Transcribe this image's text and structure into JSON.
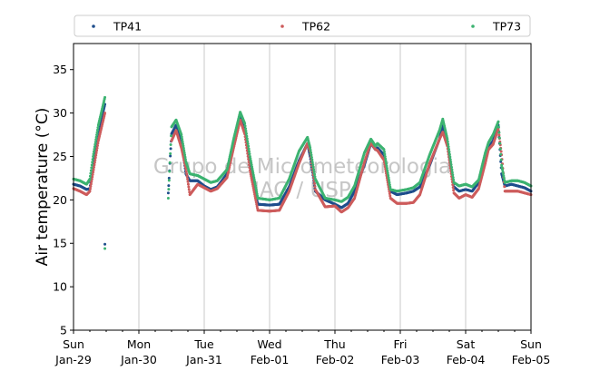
{
  "chart_data": {
    "type": "scatter",
    "ylabel": "Air temperature (°C)",
    "xlabel": "",
    "ylim": [
      5,
      38
    ],
    "yticks": [
      5,
      10,
      15,
      20,
      25,
      30,
      35
    ],
    "xlim_days": [
      0,
      7
    ],
    "xticks": [
      {
        "day": 0,
        "dow": "Sun",
        "date": "Jan-29"
      },
      {
        "day": 1,
        "dow": "Mon",
        "date": "Jan-30"
      },
      {
        "day": 2,
        "dow": "Tue",
        "date": "Jan-31"
      },
      {
        "day": 3,
        "dow": "Wed",
        "date": "Feb-01"
      },
      {
        "day": 4,
        "dow": "Thu",
        "date": "Feb-02"
      },
      {
        "day": 5,
        "dow": "Fri",
        "date": "Feb-03"
      },
      {
        "day": 6,
        "dow": "Sat",
        "date": "Feb-04"
      },
      {
        "day": 7,
        "dow": "Sun",
        "date": "Feb-05"
      }
    ],
    "grid": "vertical",
    "legend_position": "top",
    "watermark": [
      "Grupo de Micrometeorologia",
      "IAG / USP"
    ],
    "series": [
      {
        "name": "TP41",
        "color": "#1f4e8c",
        "points": [
          [
            0,
            21.8
          ],
          [
            0.1,
            21.6
          ],
          [
            0.2,
            21.2
          ],
          [
            0.25,
            21.3
          ],
          [
            0.3,
            24
          ],
          [
            0.38,
            27.8
          ],
          [
            0.48,
            31
          ],
          [
            0.48,
            14.9
          ],
          [
            1.45,
            20.8
          ],
          [
            1.5,
            27.6
          ],
          [
            1.57,
            28.6
          ],
          [
            1.65,
            26.8
          ],
          [
            1.72,
            23
          ],
          [
            1.78,
            22.2
          ],
          [
            1.9,
            22.2
          ],
          [
            2,
            21.6
          ],
          [
            2.1,
            21.2
          ],
          [
            2.2,
            21.5
          ],
          [
            2.35,
            23
          ],
          [
            2.45,
            26.5
          ],
          [
            2.55,
            29.6
          ],
          [
            2.62,
            28.2
          ],
          [
            2.7,
            24
          ],
          [
            2.82,
            19.5
          ],
          [
            3,
            19.4
          ],
          [
            3.15,
            19.5
          ],
          [
            3.3,
            21.5
          ],
          [
            3.45,
            24.5
          ],
          [
            3.58,
            26.5
          ],
          [
            3.62,
            25
          ],
          [
            3.7,
            21
          ],
          [
            3.85,
            20
          ],
          [
            4,
            19.5
          ],
          [
            4.1,
            19.1
          ],
          [
            4.2,
            19.6
          ],
          [
            4.3,
            21
          ],
          [
            4.45,
            24
          ],
          [
            4.55,
            26.5
          ],
          [
            4.62,
            25.8
          ],
          [
            4.65,
            26
          ],
          [
            4.75,
            25.2
          ],
          [
            4.85,
            21
          ],
          [
            4.95,
            20.6
          ],
          [
            5.1,
            20.8
          ],
          [
            5.2,
            21
          ],
          [
            5.3,
            21.5
          ],
          [
            5.45,
            24
          ],
          [
            5.6,
            27
          ],
          [
            5.65,
            28.6
          ],
          [
            5.72,
            26.5
          ],
          [
            5.82,
            21.5
          ],
          [
            5.9,
            21
          ],
          [
            6,
            21.2
          ],
          [
            6.1,
            21
          ],
          [
            6.2,
            22
          ],
          [
            6.3,
            24.5
          ],
          [
            6.35,
            26
          ],
          [
            6.42,
            26.8
          ],
          [
            6.5,
            28.6
          ],
          [
            6.55,
            23
          ],
          [
            6.6,
            21.6
          ],
          [
            6.7,
            21.8
          ],
          [
            6.8,
            21.6
          ],
          [
            6.9,
            21.4
          ],
          [
            7,
            21
          ]
        ]
      },
      {
        "name": "TP62",
        "color": "#cd5c5c",
        "points": [
          [
            0,
            21.3
          ],
          [
            0.1,
            21
          ],
          [
            0.2,
            20.6
          ],
          [
            0.25,
            21
          ],
          [
            0.3,
            23.2
          ],
          [
            0.38,
            26.8
          ],
          [
            0.48,
            30
          ],
          [
            1.5,
            26.8
          ],
          [
            1.57,
            28
          ],
          [
            1.65,
            26
          ],
          [
            1.72,
            23.6
          ],
          [
            1.78,
            20.6
          ],
          [
            1.9,
            21.8
          ],
          [
            2,
            21.4
          ],
          [
            2.1,
            21
          ],
          [
            2.2,
            21.3
          ],
          [
            2.35,
            22.6
          ],
          [
            2.45,
            26
          ],
          [
            2.55,
            29.2
          ],
          [
            2.62,
            27.6
          ],
          [
            2.7,
            23.4
          ],
          [
            2.82,
            18.8
          ],
          [
            3,
            18.7
          ],
          [
            3.15,
            18.8
          ],
          [
            3.3,
            21
          ],
          [
            3.45,
            24.2
          ],
          [
            3.58,
            26.5
          ],
          [
            3.62,
            25.6
          ],
          [
            3.7,
            21.2
          ],
          [
            3.85,
            19.2
          ],
          [
            4,
            19.3
          ],
          [
            4.1,
            18.6
          ],
          [
            4.2,
            19.1
          ],
          [
            4.3,
            20.2
          ],
          [
            4.45,
            24.3
          ],
          [
            4.55,
            26.6
          ],
          [
            4.62,
            25.8
          ],
          [
            4.65,
            25.7
          ],
          [
            4.75,
            24.6
          ],
          [
            4.85,
            20.2
          ],
          [
            4.95,
            19.6
          ],
          [
            5.1,
            19.6
          ],
          [
            5.2,
            19.7
          ],
          [
            5.3,
            20.6
          ],
          [
            5.45,
            24.2
          ],
          [
            5.6,
            27
          ],
          [
            5.65,
            27.8
          ],
          [
            5.72,
            26.2
          ],
          [
            5.82,
            20.8
          ],
          [
            5.9,
            20.2
          ],
          [
            6,
            20.6
          ],
          [
            6.1,
            20.3
          ],
          [
            6.2,
            21.3
          ],
          [
            6.3,
            24.2
          ],
          [
            6.35,
            25.8
          ],
          [
            6.42,
            26.4
          ],
          [
            6.5,
            28.2
          ],
          [
            6.55,
            25.2
          ],
          [
            6.6,
            21
          ],
          [
            6.7,
            21
          ],
          [
            6.8,
            21
          ],
          [
            6.9,
            20.8
          ],
          [
            7,
            20.6
          ]
        ]
      },
      {
        "name": "TP73",
        "color": "#3cb371",
        "points": [
          [
            0,
            22.4
          ],
          [
            0.1,
            22.2
          ],
          [
            0.2,
            21.8
          ],
          [
            0.25,
            22.4
          ],
          [
            0.3,
            25
          ],
          [
            0.38,
            28.6
          ],
          [
            0.48,
            31.8
          ],
          [
            0.48,
            14.4
          ],
          [
            1.45,
            20.2
          ],
          [
            1.5,
            28.4
          ],
          [
            1.57,
            29.2
          ],
          [
            1.65,
            27.5
          ],
          [
            1.72,
            24.4
          ],
          [
            1.78,
            23
          ],
          [
            1.9,
            22.8
          ],
          [
            2,
            22.4
          ],
          [
            2.1,
            22
          ],
          [
            2.2,
            22.2
          ],
          [
            2.35,
            23.5
          ],
          [
            2.45,
            27
          ],
          [
            2.55,
            30.1
          ],
          [
            2.62,
            28.8
          ],
          [
            2.7,
            25
          ],
          [
            2.82,
            20.2
          ],
          [
            3,
            20
          ],
          [
            3.15,
            20.2
          ],
          [
            3.3,
            22.4
          ],
          [
            3.45,
            25.6
          ],
          [
            3.58,
            27.2
          ],
          [
            3.62,
            26
          ],
          [
            3.7,
            22.4
          ],
          [
            3.85,
            20.2
          ],
          [
            4,
            20
          ],
          [
            4.1,
            19.8
          ],
          [
            4.2,
            20.3
          ],
          [
            4.3,
            21.6
          ],
          [
            4.45,
            25.4
          ],
          [
            4.55,
            27
          ],
          [
            4.62,
            26.2
          ],
          [
            4.65,
            26.5
          ],
          [
            4.75,
            25.8
          ],
          [
            4.85,
            21.2
          ],
          [
            4.95,
            21
          ],
          [
            5.1,
            21.2
          ],
          [
            5.2,
            21.4
          ],
          [
            5.3,
            22
          ],
          [
            5.45,
            25.2
          ],
          [
            5.6,
            28
          ],
          [
            5.65,
            29.3
          ],
          [
            5.72,
            27
          ],
          [
            5.82,
            22
          ],
          [
            5.9,
            21.6
          ],
          [
            6,
            21.8
          ],
          [
            6.1,
            21.5
          ],
          [
            6.2,
            22.3
          ],
          [
            6.3,
            25.4
          ],
          [
            6.35,
            26.6
          ],
          [
            6.42,
            27.5
          ],
          [
            6.5,
            29
          ],
          [
            6.55,
            24
          ],
          [
            6.6,
            22
          ],
          [
            6.7,
            22.2
          ],
          [
            6.8,
            22.2
          ],
          [
            6.9,
            22
          ],
          [
            7,
            21.6
          ]
        ]
      }
    ]
  }
}
